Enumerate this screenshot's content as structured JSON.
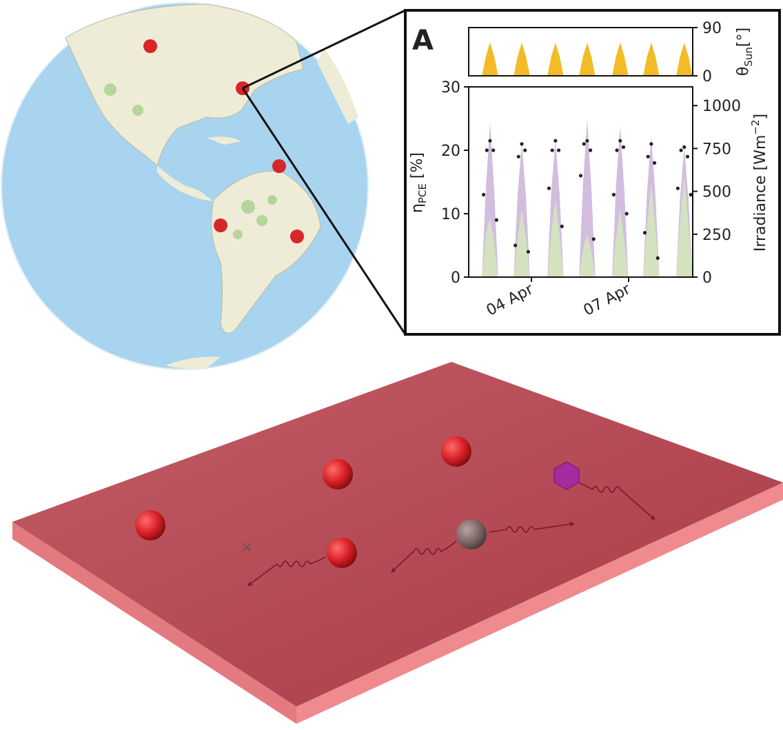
{
  "chart_data": [
    {
      "type": "area",
      "panel_label": "A",
      "xlim": [
        2.06,
        8.98
      ],
      "ylim": [
        0,
        90
      ],
      "yticks": [
        0,
        90
      ],
      "ylabel": "θ",
      "ylabel_sub": "Sun",
      "ylabel_suffix": "[°]",
      "series": [
        {
          "color": "#f2b40f",
          "x": [
            2.47,
            2.59,
            2.72,
            2.85,
            2.97,
            3.45,
            3.57,
            3.7,
            3.83,
            3.95,
            4.49,
            4.61,
            4.74,
            4.87,
            4.99,
            5.47,
            5.59,
            5.72,
            5.85,
            5.97,
            6.49,
            6.61,
            6.74,
            6.87,
            6.99,
            7.45,
            7.57,
            7.7,
            7.83,
            7.95,
            8.47,
            8.59,
            8.72,
            8.85,
            8.97
          ],
          "values": [
            0,
            36,
            62,
            36,
            0,
            0,
            36,
            62,
            36,
            0,
            0,
            36,
            62,
            36,
            0,
            0,
            36,
            62,
            36,
            0,
            0,
            36,
            62,
            36,
            0,
            0,
            36,
            62,
            36,
            0,
            0,
            36,
            62,
            36,
            0
          ]
        }
      ]
    },
    {
      "type": "scatter",
      "xlim": [
        2.06,
        8.98
      ],
      "xticks": [
        {
          "value": 4,
          "label": "04 Apr"
        },
        {
          "value": 7,
          "label": "07 Apr"
        }
      ],
      "ylim": [
        0,
        30
      ],
      "yticks": [
        0,
        10,
        20,
        30
      ],
      "y2lim": [
        0,
        1109
      ],
      "y2ticks": [
        0,
        250,
        500,
        750,
        1000
      ],
      "ylabel": "η",
      "ylabel_sub": "PCE",
      "ylabel_suffix": " [%]",
      "y2label": "Irradiance [Wm",
      "y2label_sup": "−2",
      "y2label_suffix": "]",
      "series": [
        {
          "type": "area",
          "axis": "y2",
          "color": "#cdb6dc",
          "x": [
            2.47,
            2.59,
            2.72,
            2.85,
            2.97,
            3.45,
            3.57,
            3.7,
            3.83,
            3.95,
            4.49,
            4.61,
            4.74,
            4.87,
            4.99,
            5.47,
            5.59,
            5.72,
            5.85,
            5.97,
            6.49,
            6.61,
            6.74,
            6.87,
            6.99,
            7.45,
            7.57,
            7.7,
            7.83,
            7.95,
            8.47,
            8.59,
            8.72,
            8.85,
            8.97
          ],
          "values": [
            0,
            520,
            900,
            500,
            0,
            0,
            480,
            780,
            470,
            0,
            0,
            500,
            800,
            480,
            0,
            0,
            540,
            920,
            520,
            0,
            0,
            530,
            880,
            500,
            0,
            0,
            500,
            820,
            470,
            0,
            0,
            460,
            760,
            450,
            0
          ]
        },
        {
          "type": "area",
          "axis": "y2",
          "color": "#d4e5bd",
          "x": [
            2.47,
            2.59,
            2.72,
            2.85,
            2.97,
            3.45,
            3.57,
            3.7,
            3.83,
            3.95,
            4.49,
            4.61,
            4.74,
            4.87,
            4.99,
            5.47,
            5.59,
            5.72,
            5.85,
            5.97,
            6.49,
            6.61,
            6.74,
            6.87,
            6.99,
            7.45,
            7.57,
            7.7,
            7.83,
            7.95,
            8.47,
            8.59,
            8.72,
            8.85,
            8.97
          ],
          "values": [
            0,
            250,
            350,
            200,
            0,
            0,
            220,
            400,
            220,
            0,
            0,
            260,
            450,
            240,
            0,
            0,
            160,
            250,
            150,
            0,
            0,
            230,
            400,
            210,
            0,
            0,
            300,
            550,
            280,
            0,
            0,
            320,
            600,
            300,
            0
          ]
        },
        {
          "type": "scatter",
          "color": "#222",
          "x": [
            2.52,
            2.62,
            2.72,
            2.82,
            2.92,
            3.5,
            3.6,
            3.7,
            3.8,
            3.9,
            4.54,
            4.64,
            4.74,
            4.84,
            4.94,
            5.52,
            5.62,
            5.72,
            5.82,
            5.92,
            6.54,
            6.64,
            6.74,
            6.84,
            6.94,
            7.5,
            7.6,
            7.7,
            7.8,
            7.9,
            8.52,
            8.62,
            8.72,
            8.82,
            8.92
          ],
          "values": [
            13,
            20,
            21.5,
            20,
            9,
            5,
            19,
            21,
            20,
            4,
            14,
            20,
            21.5,
            20,
            8,
            16,
            21,
            21.5,
            20,
            6,
            13,
            20,
            21.5,
            20.5,
            10,
            7,
            19,
            21,
            18,
            3,
            14,
            20,
            20.5,
            19,
            13
          ]
        }
      ]
    }
  ]
}
